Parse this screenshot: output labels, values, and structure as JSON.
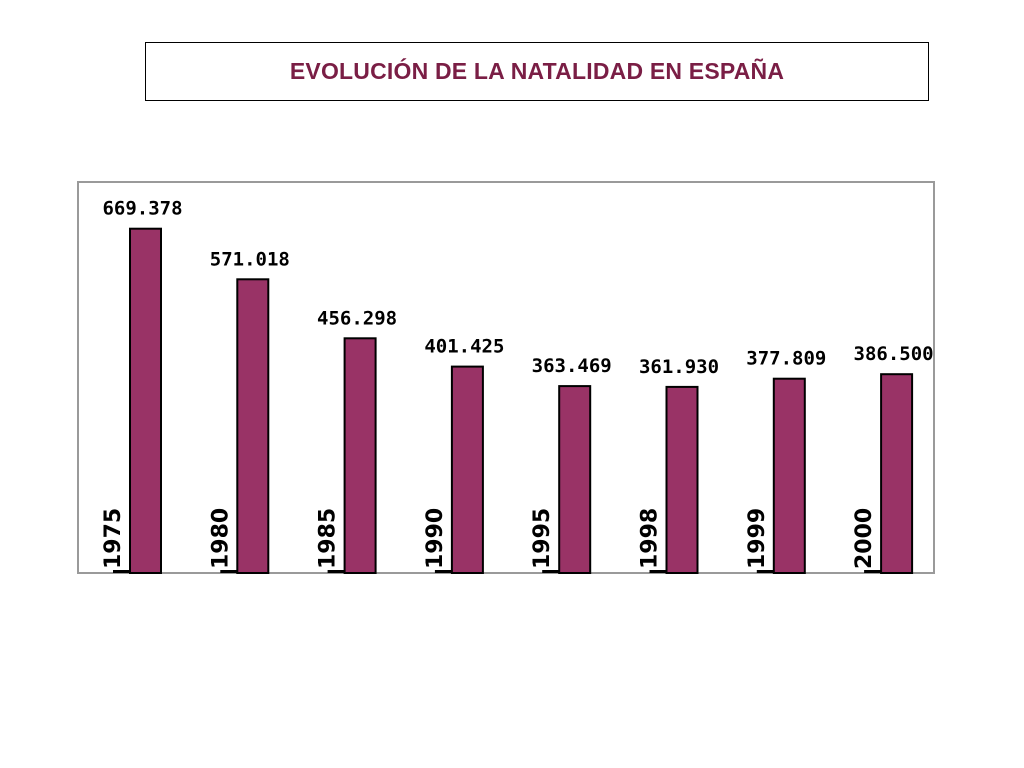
{
  "slide": {
    "title": "EVOLUCIÓN DE LA NATALIDAD EN ESPAÑA"
  },
  "colors": {
    "bar": "#993366",
    "title": "#7a1e45",
    "frame": "#9a9a9a"
  },
  "chart_data": {
    "type": "bar",
    "title": "",
    "xlabel": "",
    "ylabel": "",
    "categories": [
      "1975",
      "1980",
      "1985",
      "1990",
      "1995",
      "1998",
      "1999",
      "2000"
    ],
    "values": [
      669378,
      571018,
      456298,
      401425,
      363469,
      361930,
      377809,
      386500
    ],
    "value_labels": [
      "669.378",
      "571.018",
      "456.298",
      "401.425",
      "363.469",
      "361.930",
      "377.809",
      "386.500"
    ],
    "ylim": [
      0,
      700000
    ],
    "grid": false,
    "legend": "none"
  }
}
